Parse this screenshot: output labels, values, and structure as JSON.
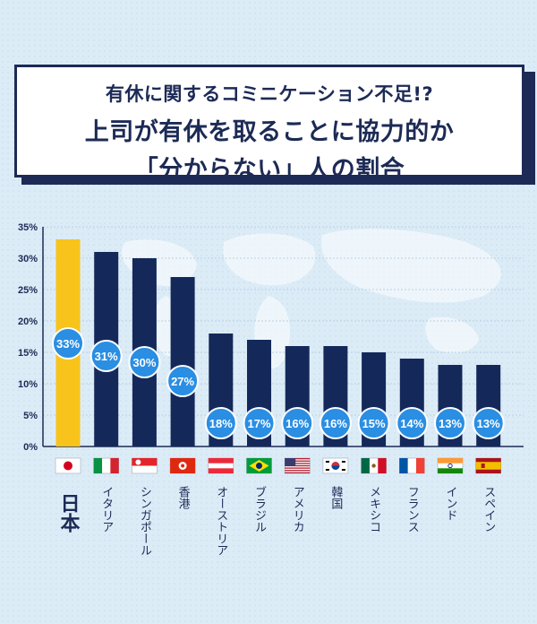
{
  "title": {
    "line1": "有休に関するコミニケーション不足!?",
    "line2": "上司が有休を取ることに協力的か",
    "line3": "「分からない」人の割合"
  },
  "colors": {
    "highlight_bar": "#f8c31b",
    "bar": "#14295a",
    "label_circle": "#2a8ee3",
    "axis": "#1c2a55"
  },
  "chart_data": {
    "type": "bar",
    "categories": [
      "日本",
      "イタリア",
      "シンガポール",
      "香港",
      "オーストリア",
      "ブラジル",
      "アメリカ",
      "韓国",
      "メキシコ",
      "フランス",
      "インド",
      "スペイン"
    ],
    "values": [
      33,
      31,
      30,
      27,
      18,
      17,
      16,
      16,
      15,
      14,
      13,
      13
    ],
    "data_labels": [
      "33%",
      "31%",
      "30%",
      "27%",
      "18%",
      "17%",
      "16%",
      "16%",
      "15%",
      "14%",
      "13%",
      "13%"
    ],
    "flags": [
      "japan-flag",
      "italy-flag",
      "singapore-flag",
      "hong-kong-flag",
      "austria-flag",
      "brazil-flag",
      "usa-flag",
      "korea-flag",
      "mexico-flag",
      "france-flag",
      "india-flag",
      "spain-flag"
    ],
    "highlight_index": 0,
    "ylim": [
      0,
      35
    ],
    "yticks": [
      "0%",
      "5%",
      "10%",
      "15%",
      "20%",
      "25%",
      "30%",
      "35%"
    ],
    "ytick_values": [
      0,
      5,
      10,
      15,
      20,
      25,
      30,
      35
    ],
    "grid": true
  }
}
